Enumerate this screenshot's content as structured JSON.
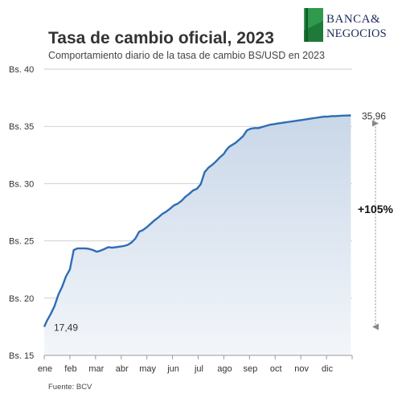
{
  "header": {
    "title": "Tasa de cambio oficial, 2023",
    "subtitle": "Comportamiento diario de la tasa de cambio BS/USD en 2023"
  },
  "logo": {
    "line1": "BANCA&",
    "line2": "NEGOCIOS"
  },
  "source": "Fuente: BCV",
  "colors": {
    "line": "#2e6db4",
    "area_top": "#c9d7e8",
    "area_bottom": "#f3f6fa",
    "grid": "#cfcfcf",
    "arrow": "#888888"
  },
  "chart_data": {
    "type": "area",
    "title": "Tasa de cambio oficial, 2023",
    "subtitle": "Comportamiento diario de la tasa de cambio BS/USD en 2023",
    "xlabel": "",
    "ylabel": "",
    "categories": [
      "ene",
      "feb",
      "mar",
      "abr",
      "may",
      "jun",
      "jul",
      "ago",
      "sep",
      "oct",
      "nov",
      "dic"
    ],
    "y_ticks": [
      "Bs. 15",
      "Bs. 20",
      "Bs. 25",
      "Bs. 30",
      "Bs. 35",
      "Bs. 40"
    ],
    "ylim": [
      15,
      40
    ],
    "xlim": [
      0,
      12
    ],
    "grid": "horizontal",
    "series": [
      {
        "x": [
          0.0,
          0.1,
          0.25,
          0.4,
          0.55,
          0.7,
          0.85,
          1.0,
          1.15,
          1.3,
          1.45,
          1.6,
          1.75,
          1.9,
          2.05,
          2.2,
          2.35,
          2.5,
          2.65,
          2.8,
          2.95,
          3.1,
          3.25,
          3.4,
          3.55,
          3.7,
          3.85,
          4.0,
          4.15,
          4.3,
          4.45,
          4.6,
          4.75,
          4.9,
          5.05,
          5.2,
          5.35,
          5.5,
          5.65,
          5.8,
          5.95,
          6.1,
          6.25,
          6.4,
          6.55,
          6.7,
          6.85,
          7.0,
          7.1,
          7.2,
          7.3,
          7.45,
          7.6,
          7.75,
          7.9,
          8.05,
          8.2,
          8.35,
          8.5,
          8.65,
          8.8,
          8.95,
          9.1,
          9.25,
          9.4,
          9.55,
          9.7,
          9.85,
          10.0,
          10.15,
          10.3,
          10.45,
          10.6,
          10.75,
          10.9,
          11.05,
          11.2,
          11.35,
          11.5,
          11.65,
          11.8,
          11.95
        ],
        "values": [
          17.49,
          18.0,
          18.6,
          19.3,
          20.3,
          21.0,
          21.9,
          22.5,
          24.2,
          24.35,
          24.35,
          24.35,
          24.3,
          24.2,
          24.05,
          24.15,
          24.3,
          24.45,
          24.4,
          24.45,
          24.5,
          24.55,
          24.65,
          24.85,
          25.2,
          25.8,
          25.95,
          26.2,
          26.5,
          26.8,
          27.05,
          27.35,
          27.55,
          27.8,
          28.1,
          28.25,
          28.5,
          28.85,
          29.1,
          29.4,
          29.55,
          29.95,
          31.0,
          31.4,
          31.65,
          31.95,
          32.3,
          32.6,
          32.95,
          33.2,
          33.35,
          33.55,
          33.85,
          34.15,
          34.65,
          34.8,
          34.85,
          34.85,
          34.95,
          35.05,
          35.15,
          35.2,
          35.25,
          35.3,
          35.35,
          35.4,
          35.45,
          35.5,
          35.55,
          35.6,
          35.65,
          35.7,
          35.75,
          35.8,
          35.85,
          35.85,
          35.9,
          35.9,
          35.92,
          35.94,
          35.95,
          35.96
        ]
      }
    ],
    "annotations": {
      "start_label": "17,49",
      "end_label": "35,96",
      "change_label": "+105%"
    }
  }
}
